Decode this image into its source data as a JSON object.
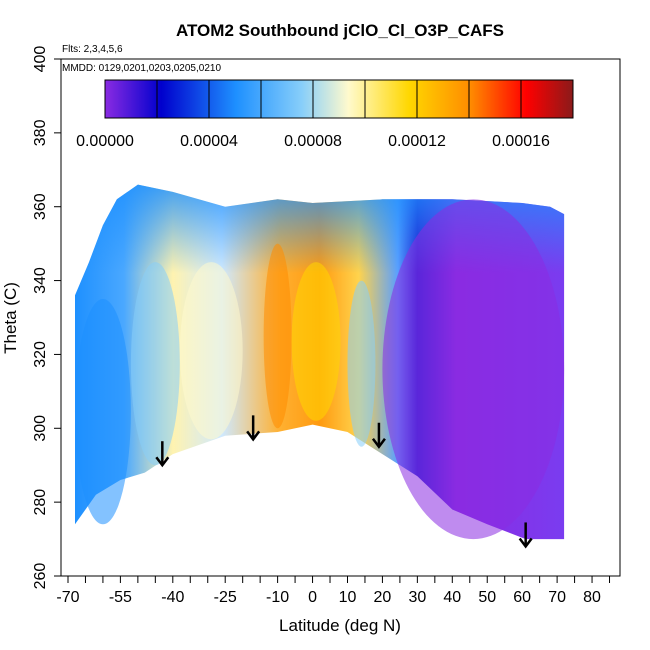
{
  "chart_data": {
    "type": "heatmap",
    "title": "ATOM2 Southbound jClO_Cl_O3P_CAFS",
    "annotations": {
      "flights": "Flts: 2,3,4,5,6",
      "dates": "MMDD: 0129,0201,0203,0205,0210"
    },
    "xlabel": "Latitude (deg N)",
    "ylabel": "Theta (C)",
    "xlim": [
      -72,
      88
    ],
    "ylim": [
      260,
      400
    ],
    "x_ticks": [
      -70,
      -55,
      -40,
      -25,
      -10,
      0,
      10,
      20,
      30,
      40,
      50,
      60,
      70,
      80
    ],
    "x_minor_ticks": [
      -65,
      -60,
      -50,
      -45,
      -35,
      -30,
      -20,
      -15,
      -5,
      5,
      15,
      25,
      35,
      45,
      55,
      65,
      75,
      85
    ],
    "y_ticks": [
      260,
      280,
      300,
      320,
      340,
      360,
      380,
      400
    ],
    "colorbar": {
      "range": [
        0,
        0.00018
      ],
      "tick_values": [
        0,
        4e-05,
        8e-05,
        0.00012,
        0.00016
      ],
      "tick_labels": [
        "0.00000",
        "0.00004",
        "0.00008",
        "0.00012",
        "0.00016"
      ],
      "divisions": [
        2e-05,
        4e-05,
        6e-05,
        8e-05,
        0.0001,
        0.00012,
        0.00014,
        0.00016
      ],
      "colors": [
        "#8a2be2",
        "#0000cd",
        "#1e90ff",
        "#87cefa",
        "#fffacd",
        "#ffd700",
        "#ff8c00",
        "#ff0000",
        "#8b1a1a"
      ]
    },
    "field": {
      "regions": [
        {
          "lat": [
            -68,
            -52
          ],
          "theta": [
            274,
            335
          ],
          "value": 5e-05
        },
        {
          "lat": [
            -52,
            -38
          ],
          "theta": [
            290,
            345
          ],
          "value": 7e-05
        },
        {
          "lat": [
            -38,
            -20
          ],
          "theta": [
            297,
            345
          ],
          "value": 9e-05
        },
        {
          "lat": [
            -14,
            -6
          ],
          "theta": [
            300,
            350
          ],
          "value": 0.00014
        },
        {
          "lat": [
            -6,
            8
          ],
          "theta": [
            302,
            345
          ],
          "value": 0.00012
        },
        {
          "lat": [
            10,
            18
          ],
          "theta": [
            295,
            340
          ],
          "value": 6e-05
        },
        {
          "lat": [
            20,
            72
          ],
          "theta": [
            270,
            362
          ],
          "value": 5e-06
        }
      ],
      "top_boundary_theta": 367
    },
    "arrows": [
      {
        "lat": -43,
        "theta": 290
      },
      {
        "lat": -17,
        "theta": 297
      },
      {
        "lat": 19,
        "theta": 295
      },
      {
        "lat": 61,
        "theta": 268
      }
    ]
  }
}
